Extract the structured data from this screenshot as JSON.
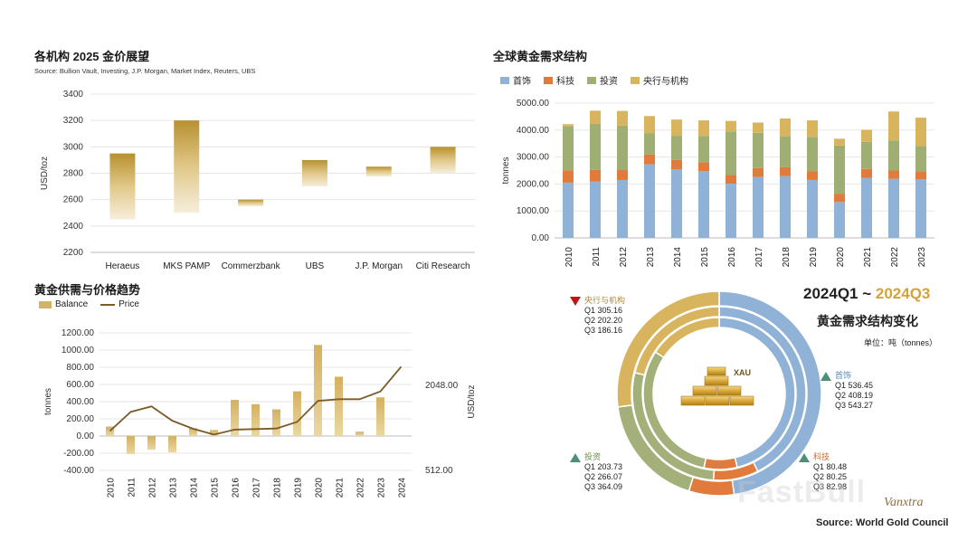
{
  "colors": {
    "gold": "#c9a24a",
    "gold_light": "#f3e7c7",
    "blue": "#8fb2d6",
    "orange": "#e07b3c",
    "green": "#9faf74",
    "gold2": "#d9b45f",
    "price_line": "#7a5c2a",
    "highlight": "#d4a238",
    "up": "#4f8f7a",
    "down": "#c0141a"
  },
  "forecast": {
    "title": "各机构 2025 金价展望",
    "subtitle": "Source: Bullion Vault, Investing, J.P. Morgan, Market Index, Reuters, UBS",
    "chart_data": {
      "type": "bar",
      "title": "各机构 2025 金价展望",
      "ylabel": "USD/toz",
      "ylim": [
        2200,
        3400
      ],
      "yticks": [
        "2200",
        "2400",
        "2600",
        "2800",
        "3000",
        "3200",
        "3400"
      ],
      "categories": [
        "Heraeus",
        "MKS PAMP",
        "Commerzbank",
        "UBS",
        "J.P. Morgan",
        "Citi Research"
      ],
      "low": [
        2450,
        2500,
        2550,
        2700,
        2775,
        2800
      ],
      "high": [
        2950,
        3200,
        2600,
        2900,
        2850,
        3000
      ]
    }
  },
  "demand": {
    "title": "全球黄金需求结构",
    "chart_data": {
      "type": "bar",
      "stacked": true,
      "ylabel": "tonnes",
      "ylim": [
        0,
        5000
      ],
      "yticks": [
        "0.00",
        "1000.00",
        "2000.00",
        "3000.00",
        "4000.00",
        "5000.00"
      ],
      "categories": [
        "2010",
        "2011",
        "2012",
        "2013",
        "2014",
        "2015",
        "2016",
        "2017",
        "2018",
        "2019",
        "2020",
        "2021",
        "2022",
        "2023"
      ],
      "series": [
        {
          "name": "首饰",
          "values": [
            2050,
            2090,
            2150,
            2730,
            2540,
            2480,
            2010,
            2260,
            2290,
            2150,
            1330,
            2230,
            2190,
            2170
          ]
        },
        {
          "name": "科技",
          "values": [
            460,
            430,
            380,
            360,
            350,
            330,
            320,
            330,
            330,
            330,
            310,
            330,
            310,
            300
          ]
        },
        {
          "name": "投资",
          "values": [
            1630,
            1720,
            1640,
            800,
            900,
            970,
            1620,
            1310,
            1150,
            1270,
            1790,
            1000,
            1110,
            940
          ]
        },
        {
          "name": "央行与机构",
          "values": [
            80,
            480,
            540,
            630,
            600,
            580,
            390,
            380,
            660,
            610,
            250,
            450,
            1080,
            1050
          ]
        }
      ]
    }
  },
  "balance": {
    "title": "黄金供需与价格趋势",
    "legend_balance": "Balance",
    "legend_price": "Price",
    "chart_data": {
      "type": "bar",
      "ylabel": "tonnes",
      "y2label": "USD/toz",
      "ylim": [
        -400,
        1200
      ],
      "yticks": [
        "-400.00",
        "-200.00",
        "0.00",
        "200.00",
        "400.00",
        "600.00",
        "800.00",
        "1000.00",
        "1200.00"
      ],
      "y2ticks": [
        "512.00",
        "2048.00"
      ],
      "categories": [
        "2010",
        "2011",
        "2012",
        "2013",
        "2014",
        "2015",
        "2016",
        "2017",
        "2018",
        "2019",
        "2020",
        "2021",
        "2022",
        "2023",
        "2024"
      ],
      "series": [
        {
          "name": "Balance",
          "type": "bar",
          "values": [
            110,
            -210,
            -160,
            -190,
            90,
            70,
            420,
            370,
            310,
            520,
            1060,
            690,
            50,
            450,
            null
          ]
        },
        {
          "name": "Price",
          "type": "line",
          "values": [
            1225,
            1570,
            1670,
            1410,
            1265,
            1160,
            1250,
            1260,
            1270,
            1390,
            1770,
            1800,
            1800,
            1940,
            2390
          ]
        }
      ],
      "y2lim": [
        512,
        3000
      ]
    }
  },
  "donut": {
    "title_a": "2024Q1",
    "title_sep": " ~ ",
    "title_b": "2024Q3",
    "subtitle": "黄金需求结构变化",
    "unit": "单位：吨（tonnes）",
    "center_label": "XAU",
    "chart_data": {
      "type": "pie",
      "variant": "multi-ring donut",
      "rings": [
        "Q1",
        "Q2",
        "Q3"
      ],
      "categories": [
        "首饰",
        "科技",
        "投资",
        "央行与机构"
      ],
      "series": [
        {
          "name": "Q1",
          "values": [
            536.45,
            80.48,
            203.73,
            305.16
          ]
        },
        {
          "name": "Q2",
          "values": [
            408.19,
            80.25,
            266.07,
            202.2
          ]
        },
        {
          "name": "Q3",
          "values": [
            543.27,
            82.98,
            364.09,
            186.16
          ]
        }
      ]
    },
    "annotations": {
      "central": {
        "name": "央行与机构",
        "lines": [
          "Q1 305.16",
          "Q2 202.20",
          "Q3 186.16"
        ]
      },
      "jewelry": {
        "name": "首饰",
        "lines": [
          "Q1 536.45",
          "Q2 408.19",
          "Q3 543.27"
        ]
      },
      "tech": {
        "name": "科技",
        "lines": [
          "Q1 80.48",
          "Q2 80.25",
          "Q3 82.98"
        ]
      },
      "invest": {
        "name": "投资",
        "lines": [
          "Q1 203.73",
          "Q2 266.07",
          "Q3 364.09"
        ]
      }
    }
  },
  "footer": {
    "source": "Source: World Gold Council",
    "watermark": "FastBull",
    "logo": "Vanxtra"
  }
}
